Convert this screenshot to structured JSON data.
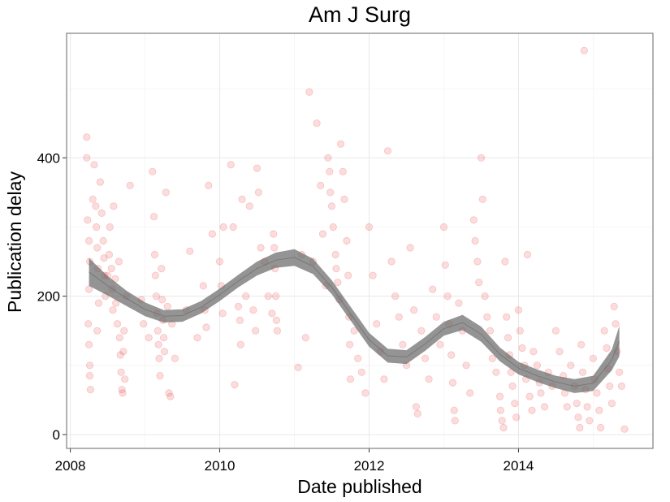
{
  "chart_data": {
    "type": "scatter",
    "title": "Am J Surg",
    "xlabel": "Date published",
    "ylabel": "Publication delay",
    "xlim": [
      2007.95,
      2015.8
    ],
    "ylim": [
      -20,
      580
    ],
    "x_ticks": [
      2008,
      2010,
      2012,
      2014
    ],
    "x_tick_labels": [
      "2008",
      "2010",
      "2012",
      "2014"
    ],
    "y_ticks": [
      0,
      200,
      400
    ],
    "y_tick_labels": [
      "0",
      "200",
      "400"
    ],
    "grid": true,
    "legend": "none",
    "point_color": "#e41a1c",
    "smooth_color": "#666666",
    "series": [
      {
        "type": "scatter",
        "points": [
          [
            2008.22,
            430
          ],
          [
            2008.22,
            400
          ],
          [
            2008.23,
            310
          ],
          [
            2008.25,
            280
          ],
          [
            2008.26,
            250
          ],
          [
            2008.25,
            210
          ],
          [
            2008.24,
            160
          ],
          [
            2008.25,
            130
          ],
          [
            2008.26,
            100
          ],
          [
            2008.26,
            85
          ],
          [
            2008.27,
            65
          ],
          [
            2008.3,
            340
          ],
          [
            2008.32,
            390
          ],
          [
            2008.34,
            330
          ],
          [
            2008.35,
            300
          ],
          [
            2008.36,
            270
          ],
          [
            2008.37,
            240
          ],
          [
            2008.38,
            190
          ],
          [
            2008.36,
            150
          ],
          [
            2008.4,
            365
          ],
          [
            2008.42,
            320
          ],
          [
            2008.44,
            280
          ],
          [
            2008.45,
            255
          ],
          [
            2008.46,
            230
          ],
          [
            2008.47,
            200
          ],
          [
            2008.5,
            230
          ],
          [
            2008.52,
            260
          ],
          [
            2008.53,
            300
          ],
          [
            2008.55,
            240
          ],
          [
            2008.56,
            210
          ],
          [
            2008.57,
            180
          ],
          [
            2008.58,
            330
          ],
          [
            2008.6,
            225
          ],
          [
            2008.61,
            190
          ],
          [
            2008.63,
            160
          ],
          [
            2008.65,
            250
          ],
          [
            2008.66,
            140
          ],
          [
            2008.67,
            115
          ],
          [
            2008.68,
            90
          ],
          [
            2008.69,
            65
          ],
          [
            2008.7,
            60
          ],
          [
            2008.71,
            120
          ],
          [
            2008.72,
            150
          ],
          [
            2008.73,
            80
          ],
          [
            2008.75,
            200
          ],
          [
            2008.8,
            360
          ],
          [
            2008.95,
            195
          ],
          [
            2008.98,
            160
          ],
          [
            2009.05,
            140
          ],
          [
            2009.1,
            380
          ],
          [
            2009.12,
            315
          ],
          [
            2009.13,
            260
          ],
          [
            2009.14,
            230
          ],
          [
            2009.15,
            200
          ],
          [
            2009.16,
            175
          ],
          [
            2009.17,
            150
          ],
          [
            2009.18,
            130
          ],
          [
            2009.19,
            110
          ],
          [
            2009.2,
            85
          ],
          [
            2009.22,
            240
          ],
          [
            2009.23,
            195
          ],
          [
            2009.24,
            165
          ],
          [
            2009.25,
            140
          ],
          [
            2009.26,
            120
          ],
          [
            2009.28,
            350
          ],
          [
            2009.3,
            185
          ],
          [
            2009.32,
            60
          ],
          [
            2009.34,
            55
          ],
          [
            2009.36,
            160
          ],
          [
            2009.4,
            110
          ],
          [
            2009.55,
            180
          ],
          [
            2009.6,
            265
          ],
          [
            2009.7,
            140
          ],
          [
            2009.78,
            215
          ],
          [
            2009.8,
            180
          ],
          [
            2009.82,
            155
          ],
          [
            2009.85,
            360
          ],
          [
            2009.9,
            290
          ],
          [
            2010.0,
            250
          ],
          [
            2010.02,
            215
          ],
          [
            2010.04,
            175
          ],
          [
            2010.05,
            300
          ],
          [
            2010.15,
            390
          ],
          [
            2010.18,
            300
          ],
          [
            2010.2,
            72
          ],
          [
            2010.25,
            185
          ],
          [
            2010.27,
            165
          ],
          [
            2010.28,
            130
          ],
          [
            2010.3,
            340
          ],
          [
            2010.35,
            200
          ],
          [
            2010.4,
            330
          ],
          [
            2010.45,
            180
          ],
          [
            2010.48,
            150
          ],
          [
            2010.5,
            385
          ],
          [
            2010.52,
            350
          ],
          [
            2010.55,
            270
          ],
          [
            2010.6,
            250
          ],
          [
            2010.65,
            200
          ],
          [
            2010.7,
            175
          ],
          [
            2010.72,
            290
          ],
          [
            2010.73,
            270
          ],
          [
            2010.74,
            240
          ],
          [
            2010.75,
            200
          ],
          [
            2010.76,
            165
          ],
          [
            2010.77,
            150
          ],
          [
            2011.05,
            97
          ],
          [
            2011.1,
            260
          ],
          [
            2011.15,
            140
          ],
          [
            2011.2,
            495
          ],
          [
            2011.25,
            250
          ],
          [
            2011.3,
            450
          ],
          [
            2011.35,
            360
          ],
          [
            2011.38,
            290
          ],
          [
            2011.42,
            215
          ],
          [
            2011.45,
            400
          ],
          [
            2011.47,
            380
          ],
          [
            2011.48,
            350
          ],
          [
            2011.5,
            330
          ],
          [
            2011.52,
            300
          ],
          [
            2011.55,
            260
          ],
          [
            2011.56,
            240
          ],
          [
            2011.58,
            220
          ],
          [
            2011.6,
            195
          ],
          [
            2011.62,
            420
          ],
          [
            2011.65,
            380
          ],
          [
            2011.67,
            340
          ],
          [
            2011.7,
            280
          ],
          [
            2011.72,
            230
          ],
          [
            2011.73,
            170
          ],
          [
            2011.74,
            130
          ],
          [
            2011.75,
            80
          ],
          [
            2011.8,
            150
          ],
          [
            2011.85,
            110
          ],
          [
            2011.9,
            90
          ],
          [
            2011.95,
            60
          ],
          [
            2012.0,
            300
          ],
          [
            2012.05,
            230
          ],
          [
            2012.1,
            160
          ],
          [
            2012.15,
            120
          ],
          [
            2012.2,
            80
          ],
          [
            2012.25,
            410
          ],
          [
            2012.3,
            250
          ],
          [
            2012.35,
            200
          ],
          [
            2012.4,
            170
          ],
          [
            2012.45,
            130
          ],
          [
            2012.5,
            100
          ],
          [
            2012.55,
            270
          ],
          [
            2012.6,
            180
          ],
          [
            2012.63,
            40
          ],
          [
            2012.65,
            30
          ],
          [
            2012.7,
            150
          ],
          [
            2012.75,
            110
          ],
          [
            2012.8,
            80
          ],
          [
            2012.85,
            210
          ],
          [
            2012.9,
            170
          ],
          [
            2012.95,
            130
          ],
          [
            2013.0,
            300
          ],
          [
            2013.02,
            245
          ],
          [
            2013.05,
            200
          ],
          [
            2013.07,
            160
          ],
          [
            2013.1,
            115
          ],
          [
            2013.12,
            75
          ],
          [
            2013.14,
            35
          ],
          [
            2013.15,
            20
          ],
          [
            2013.2,
            190
          ],
          [
            2013.25,
            150
          ],
          [
            2013.3,
            100
          ],
          [
            2013.35,
            60
          ],
          [
            2013.4,
            310
          ],
          [
            2013.42,
            280
          ],
          [
            2013.45,
            250
          ],
          [
            2013.47,
            220
          ],
          [
            2013.5,
            400
          ],
          [
            2013.52,
            340
          ],
          [
            2013.55,
            200
          ],
          [
            2013.58,
            170
          ],
          [
            2013.62,
            150
          ],
          [
            2013.65,
            110
          ],
          [
            2013.7,
            90
          ],
          [
            2013.75,
            55
          ],
          [
            2013.76,
            35
          ],
          [
            2013.78,
            20
          ],
          [
            2013.8,
            10
          ],
          [
            2013.82,
            250
          ],
          [
            2013.84,
            170
          ],
          [
            2013.86,
            140
          ],
          [
            2013.88,
            115
          ],
          [
            2013.9,
            90
          ],
          [
            2013.92,
            70
          ],
          [
            2013.95,
            45
          ],
          [
            2013.97,
            25
          ],
          [
            2014.0,
            180
          ],
          [
            2014.02,
            150
          ],
          [
            2014.05,
            125
          ],
          [
            2014.08,
            100
          ],
          [
            2014.1,
            80
          ],
          [
            2014.12,
            260
          ],
          [
            2014.15,
            55
          ],
          [
            2014.18,
            35
          ],
          [
            2014.2,
            120
          ],
          [
            2014.25,
            100
          ],
          [
            2014.28,
            75
          ],
          [
            2014.3,
            60
          ],
          [
            2014.35,
            40
          ],
          [
            2014.4,
            90
          ],
          [
            2014.45,
            70
          ],
          [
            2014.5,
            150
          ],
          [
            2014.55,
            120
          ],
          [
            2014.6,
            85
          ],
          [
            2014.62,
            60
          ],
          [
            2014.65,
            40
          ],
          [
            2014.7,
            100
          ],
          [
            2014.75,
            70
          ],
          [
            2014.78,
            45
          ],
          [
            2014.8,
            25
          ],
          [
            2014.82,
            10
          ],
          [
            2014.84,
            130
          ],
          [
            2014.86,
            90
          ],
          [
            2014.88,
            555
          ],
          [
            2014.9,
            65
          ],
          [
            2014.92,
            40
          ],
          [
            2014.95,
            20
          ],
          [
            2015.0,
            110
          ],
          [
            2015.02,
            80
          ],
          [
            2015.05,
            60
          ],
          [
            2015.08,
            35
          ],
          [
            2015.1,
            10
          ],
          [
            2015.15,
            150
          ],
          [
            2015.18,
            125
          ],
          [
            2015.2,
            95
          ],
          [
            2015.22,
            70
          ],
          [
            2015.25,
            45
          ],
          [
            2015.28,
            185
          ],
          [
            2015.3,
            160
          ],
          [
            2015.32,
            120
          ],
          [
            2015.35,
            90
          ],
          [
            2015.38,
            70
          ],
          [
            2015.42,
            8
          ]
        ]
      },
      {
        "type": "smooth",
        "x": [
          2008.25,
          2008.5,
          2008.75,
          2009.0,
          2009.25,
          2009.5,
          2009.75,
          2010.0,
          2010.25,
          2010.5,
          2010.75,
          2011.0,
          2011.25,
          2011.5,
          2011.75,
          2012.0,
          2012.25,
          2012.5,
          2012.75,
          2013.0,
          2013.25,
          2013.5,
          2013.75,
          2014.0,
          2014.25,
          2014.5,
          2014.75,
          2015.0,
          2015.25,
          2015.35
        ],
        "y": [
          235,
          215,
          197,
          181,
          171,
          172,
          184,
          202,
          222,
          240,
          252,
          256,
          243,
          213,
          175,
          137,
          114,
          112,
          131,
          153,
          162,
          145,
          116,
          96,
          85,
          76,
          70,
          74,
          108,
          135
        ],
        "band": [
          20,
          14,
          11,
          10,
          9,
          9,
          9,
          9,
          9,
          10,
          11,
          12,
          11,
          10,
          10,
          10,
          10,
          10,
          10,
          10,
          11,
          11,
          10,
          9,
          9,
          9,
          10,
          11,
          15,
          22
        ]
      }
    ]
  }
}
